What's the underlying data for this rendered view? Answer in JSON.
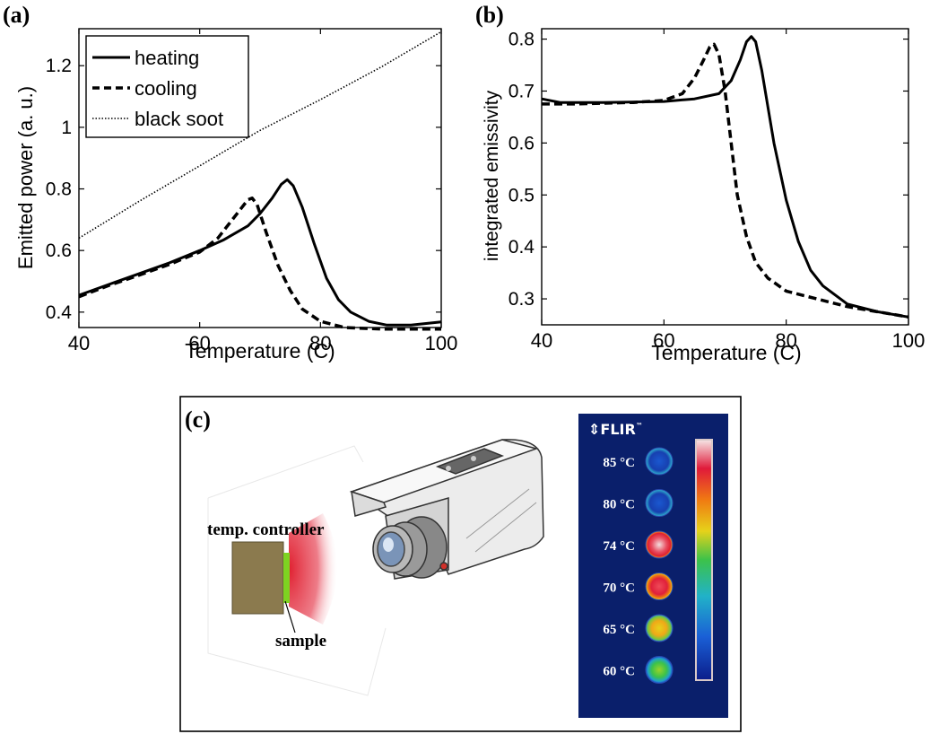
{
  "panels": {
    "a": {
      "label": "(a)"
    },
    "b": {
      "label": "(b)"
    },
    "c": {
      "label": "(c)"
    }
  },
  "chart_data": [
    {
      "id": "a",
      "type": "line",
      "xlabel": "Temperature (C)",
      "ylabel": "Emitted power (a. u.)",
      "xlim": [
        40,
        100
      ],
      "ylim": [
        0.35,
        1.32
      ],
      "xticks": [
        40,
        60,
        80,
        100
      ],
      "yticks": [
        0.4,
        0.6,
        0.8,
        1,
        1.2
      ],
      "ytick_labels": [
        "0.4",
        "0.6",
        "0.8",
        "1",
        "1.2"
      ],
      "legend_position": "top-left",
      "grid": false,
      "series": [
        {
          "name": "heating",
          "style": "solid",
          "points": [
            [
              40,
              0.455
            ],
            [
              45,
              0.49
            ],
            [
              50,
              0.525
            ],
            [
              55,
              0.56
            ],
            [
              60,
              0.6
            ],
            [
              64,
              0.635
            ],
            [
              68,
              0.68
            ],
            [
              70,
              0.72
            ],
            [
              72,
              0.77
            ],
            [
              73.5,
              0.815
            ],
            [
              74.5,
              0.83
            ],
            [
              75.5,
              0.81
            ],
            [
              77,
              0.74
            ],
            [
              79,
              0.62
            ],
            [
              81,
              0.51
            ],
            [
              83,
              0.44
            ],
            [
              85,
              0.4
            ],
            [
              88,
              0.37
            ],
            [
              91,
              0.358
            ],
            [
              95,
              0.358
            ],
            [
              100,
              0.368
            ]
          ]
        },
        {
          "name": "cooling",
          "style": "dashed",
          "points": [
            [
              40,
              0.45
            ],
            [
              45,
              0.487
            ],
            [
              50,
              0.52
            ],
            [
              55,
              0.555
            ],
            [
              60,
              0.595
            ],
            [
              63,
              0.64
            ],
            [
              65,
              0.69
            ],
            [
              67,
              0.74
            ],
            [
              68,
              0.765
            ],
            [
              68.7,
              0.77
            ],
            [
              69.5,
              0.75
            ],
            [
              71,
              0.66
            ],
            [
              73,
              0.55
            ],
            [
              75,
              0.47
            ],
            [
              77,
              0.41
            ],
            [
              80,
              0.37
            ],
            [
              84,
              0.35
            ],
            [
              90,
              0.345
            ],
            [
              100,
              0.345
            ]
          ]
        },
        {
          "name": "black soot",
          "style": "dotted",
          "points": [
            [
              40,
              0.64
            ],
            [
              50,
              0.76
            ],
            [
              60,
              0.875
            ],
            [
              70,
              0.99
            ],
            [
              80,
              1.09
            ],
            [
              90,
              1.195
            ],
            [
              100,
              1.31
            ]
          ]
        }
      ]
    },
    {
      "id": "b",
      "type": "line",
      "xlabel": "Temperature (C)",
      "ylabel": "integrated emissivity",
      "xlim": [
        40,
        100
      ],
      "ylim": [
        0.25,
        0.82
      ],
      "xticks": [
        40,
        60,
        80,
        100
      ],
      "yticks": [
        0.3,
        0.4,
        0.5,
        0.6,
        0.7,
        0.8
      ],
      "ytick_labels": [
        "0.3",
        "0.4",
        "0.5",
        "0.6",
        "0.7",
        "0.8"
      ],
      "grid": false,
      "series": [
        {
          "style": "solid",
          "points": [
            [
              40,
              0.685
            ],
            [
              43,
              0.678
            ],
            [
              50,
              0.678
            ],
            [
              60,
              0.68
            ],
            [
              65,
              0.685
            ],
            [
              69,
              0.695
            ],
            [
              71,
              0.72
            ],
            [
              72.5,
              0.76
            ],
            [
              73.5,
              0.795
            ],
            [
              74.3,
              0.805
            ],
            [
              75,
              0.795
            ],
            [
              76,
              0.74
            ],
            [
              78,
              0.6
            ],
            [
              80,
              0.49
            ],
            [
              82,
              0.41
            ],
            [
              84,
              0.355
            ],
            [
              86,
              0.325
            ],
            [
              90,
              0.29
            ],
            [
              95,
              0.275
            ],
            [
              100,
              0.265
            ]
          ]
        },
        {
          "style": "dashed",
          "points": [
            [
              40,
              0.675
            ],
            [
              45,
              0.675
            ],
            [
              55,
              0.678
            ],
            [
              60,
              0.682
            ],
            [
              63,
              0.695
            ],
            [
              65,
              0.725
            ],
            [
              66.5,
              0.76
            ],
            [
              67.5,
              0.785
            ],
            [
              68.2,
              0.79
            ],
            [
              69,
              0.77
            ],
            [
              70,
              0.7
            ],
            [
              71,
              0.6
            ],
            [
              72,
              0.5
            ],
            [
              73.5,
              0.42
            ],
            [
              75,
              0.37
            ],
            [
              77,
              0.34
            ],
            [
              80,
              0.315
            ],
            [
              85,
              0.3
            ],
            [
              90,
              0.285
            ],
            [
              95,
              0.275
            ],
            [
              100,
              0.265
            ]
          ]
        }
      ]
    }
  ],
  "diagram": {
    "controller_label": "temp. controller",
    "sample_label": "sample",
    "thermal_brand": "FLIR",
    "thermal_brand_mark": "™",
    "colors": {
      "controller": "#8b7a4e",
      "sample": "#7ed321",
      "emission": "#e02030",
      "thermal_bg": "#0a1f6b"
    },
    "thermal_rows": [
      {
        "label": "85 °C",
        "style": "cool"
      },
      {
        "label": "80 °C",
        "style": "cool"
      },
      {
        "label": "74 °C",
        "style": "hot"
      },
      {
        "label": "70 °C",
        "style": "warm"
      },
      {
        "label": "65 °C",
        "style": "mid"
      },
      {
        "label": "60 °C",
        "style": "low"
      }
    ]
  }
}
